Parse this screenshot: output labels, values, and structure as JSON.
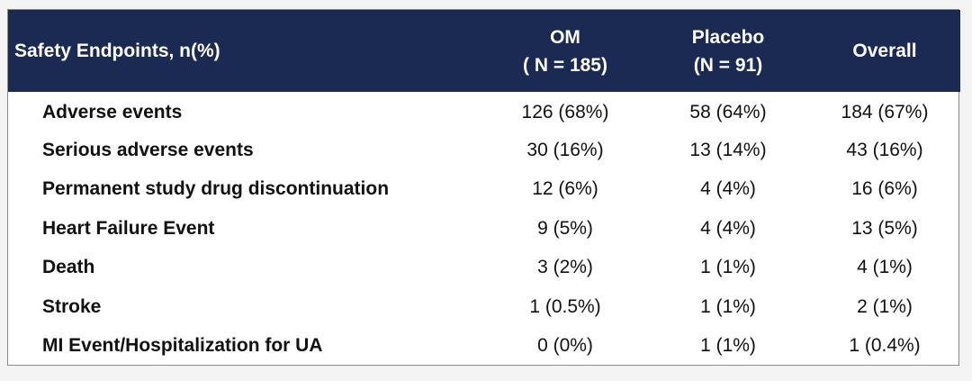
{
  "chart_data": {
    "type": "table",
    "header": {
      "label": "Safety Endpoints, n(%)",
      "columns": [
        {
          "name": "OM",
          "sub": "( N = 185)"
        },
        {
          "name": "Placebo",
          "sub": "(N = 91)"
        },
        {
          "name": "Overall",
          "sub": ""
        }
      ]
    },
    "rows": [
      {
        "label": "Adverse events",
        "values": [
          "126 (68%)",
          "58 (64%)",
          "184 (67%)"
        ]
      },
      {
        "label": "Serious adverse events",
        "values": [
          "30 (16%)",
          "13 (14%)",
          "43 (16%)"
        ]
      },
      {
        "label": "Permanent study drug discontinuation",
        "values": [
          "12 (6%)",
          "4 (4%)",
          "16 (6%)"
        ]
      },
      {
        "label": "Heart Failure Event",
        "values": [
          "9 (5%)",
          "4 (4%)",
          "13 (5%)"
        ]
      },
      {
        "label": "Death",
        "values": [
          "3 (2%)",
          "1 (1%)",
          "4 (1%)"
        ]
      },
      {
        "label": "Stroke",
        "values": [
          "1 (0.5%)",
          "1 (1%)",
          "2 (1%)"
        ]
      },
      {
        "label": "MI Event/Hospitalization for UA",
        "values": [
          "0 (0%)",
          "1 (1%)",
          "1 (0.4%)"
        ]
      }
    ]
  },
  "colors": {
    "header_background": "#1b2a52",
    "header_text": "#ffffff"
  }
}
